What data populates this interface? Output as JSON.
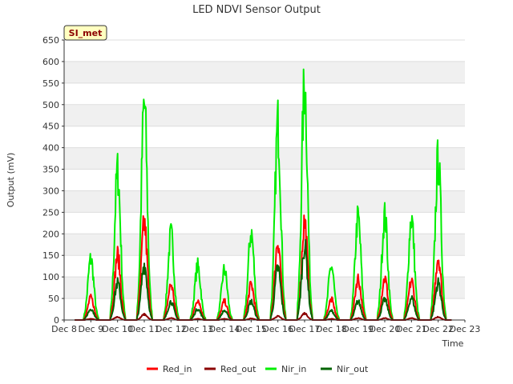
{
  "chart_data": {
    "type": "line",
    "title": "LED NDVI Sensor Output",
    "xlabel": "Time",
    "ylabel": "Output (mV)",
    "site_label": "SI_met",
    "ylim": [
      0,
      650
    ],
    "yticks": [
      0,
      50,
      100,
      150,
      200,
      250,
      300,
      350,
      400,
      450,
      500,
      550,
      600,
      650
    ],
    "xlim": [
      8,
      23
    ],
    "xticks": [
      8,
      9,
      10,
      11,
      12,
      13,
      14,
      15,
      16,
      17,
      18,
      19,
      20,
      21,
      22,
      23
    ],
    "xtick_labels": [
      "Dec 8",
      "Dec 9",
      "Dec 10",
      "Dec 11",
      "Dec 12",
      "Dec 13",
      "Dec 14",
      "Dec 15",
      "Dec 16",
      "Dec 17",
      "Dec 18",
      "Dec 19",
      "Dec 20",
      "Dec 21",
      "Dec 22",
      "Dec 23"
    ],
    "grid": true,
    "legend_position": "bottom",
    "data_start_day": 8.4,
    "data_end_day": 22.5,
    "series": [
      {
        "name": "Red_in",
        "color": "#ff0000",
        "daily_peaks": [
          {
            "day": 9.0,
            "value": 60
          },
          {
            "day": 10.0,
            "value": 175
          },
          {
            "day": 11.0,
            "value": 260
          },
          {
            "day": 12.0,
            "value": 95
          },
          {
            "day": 13.0,
            "value": 55
          },
          {
            "day": 14.0,
            "value": 50
          },
          {
            "day": 15.0,
            "value": 95
          },
          {
            "day": 16.0,
            "value": 215
          },
          {
            "day": 17.0,
            "value": 265
          },
          {
            "day": 18.0,
            "value": 55
          },
          {
            "day": 19.0,
            "value": 112
          },
          {
            "day": 20.0,
            "value": 112
          },
          {
            "day": 21.0,
            "value": 105
          },
          {
            "day": 22.0,
            "value": 170
          }
        ]
      },
      {
        "name": "Red_out",
        "color": "#8b0000",
        "daily_peaks": [
          {
            "day": 9.0,
            "value": 3
          },
          {
            "day": 10.0,
            "value": 8
          },
          {
            "day": 11.0,
            "value": 15
          },
          {
            "day": 12.0,
            "value": 5
          },
          {
            "day": 13.0,
            "value": 3
          },
          {
            "day": 14.0,
            "value": 3
          },
          {
            "day": 15.0,
            "value": 4
          },
          {
            "day": 16.0,
            "value": 10
          },
          {
            "day": 17.0,
            "value": 18
          },
          {
            "day": 18.0,
            "value": 3
          },
          {
            "day": 19.0,
            "value": 5
          },
          {
            "day": 20.0,
            "value": 5
          },
          {
            "day": 21.0,
            "value": 5
          },
          {
            "day": 22.0,
            "value": 8
          }
        ]
      },
      {
        "name": "Nir_in",
        "color": "#00ee00",
        "daily_peaks": [
          {
            "day": 9.0,
            "value": 165
          },
          {
            "day": 10.0,
            "value": 400
          },
          {
            "day": 11.0,
            "value": 580
          },
          {
            "day": 12.0,
            "value": 230
          },
          {
            "day": 13.0,
            "value": 145
          },
          {
            "day": 14.0,
            "value": 135
          },
          {
            "day": 15.0,
            "value": 235
          },
          {
            "day": 16.0,
            "value": 525
          },
          {
            "day": 17.0,
            "value": 635
          },
          {
            "day": 18.0,
            "value": 145
          },
          {
            "day": 19.0,
            "value": 275
          },
          {
            "day": 20.0,
            "value": 280
          },
          {
            "day": 21.0,
            "value": 275
          },
          {
            "day": 22.0,
            "value": 430
          }
        ]
      },
      {
        "name": "Nir_out",
        "color": "#006400",
        "daily_peaks": [
          {
            "day": 9.0,
            "value": 30
          },
          {
            "day": 10.0,
            "value": 100
          },
          {
            "day": 11.0,
            "value": 150
          },
          {
            "day": 12.0,
            "value": 50
          },
          {
            "day": 13.0,
            "value": 30
          },
          {
            "day": 14.0,
            "value": 25
          },
          {
            "day": 15.0,
            "value": 50
          },
          {
            "day": 16.0,
            "value": 140
          },
          {
            "day": 17.0,
            "value": 200
          },
          {
            "day": 18.0,
            "value": 25
          },
          {
            "day": 19.0,
            "value": 50
          },
          {
            "day": 20.0,
            "value": 55
          },
          {
            "day": 21.0,
            "value": 60
          },
          {
            "day": 22.0,
            "value": 100
          }
        ]
      }
    ]
  }
}
